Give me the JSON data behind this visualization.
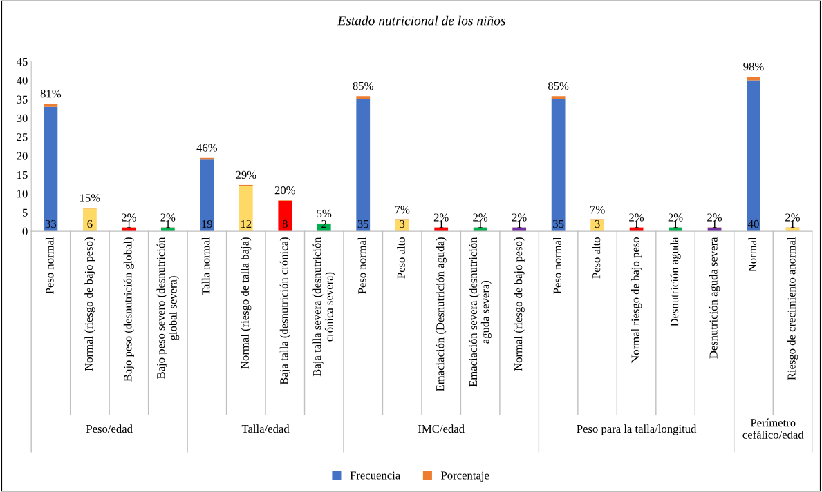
{
  "chart_data": {
    "type": "bar",
    "title": "Estado nutricional de los niños",
    "categories": [
      "Peso normal",
      "Normal (riesgo de bajo peso)",
      "Bajo peso (desnutrición global)",
      "Bajo peso severo (desnutrición\nglobal severa)",
      "Talla normal",
      "Normal (riesgo de talla baja)",
      "Baja talla (desnutrición crónica)",
      "Baja talla severa (desnutrición\ncrónica severa)",
      "Peso normal",
      "Peso alto",
      "Emaciación (Desnutrición aguda)",
      "Emaciación severa (desnutrición\naguda severa)",
      "Normal (riesgo de bajo peso)",
      "Peso normal",
      "Peso alto",
      "Normal riesgo de bajo peso",
      "Desnutrición aguda",
      "Desnutrición aguda severa",
      "Normal",
      "Riesgo de crecimiento anormal"
    ],
    "stacked": true,
    "series": [
      {
        "name": "Frecuencia",
        "color": "#4472c4",
        "colors": [
          "#4472c4",
          "#ffd966",
          "#ff0000",
          "#00b050",
          "#4472c4",
          "#ffd966",
          "#ff0000",
          "#00b050",
          "#4472c4",
          "#ffd966",
          "#ff0000",
          "#00b050",
          "#7030a0",
          "#4472c4",
          "#ffd966",
          "#ff0000",
          "#00b050",
          "#7030a0",
          "#4472c4",
          "#ffd966"
        ],
        "values": [
          33,
          6,
          1,
          1,
          19,
          12,
          8,
          2,
          35,
          3,
          1,
          1,
          1,
          35,
          3,
          1,
          1,
          1,
          40,
          1
        ],
        "value_labels": [
          "33",
          "6",
          "1",
          "1",
          "19",
          "12",
          "8",
          "2",
          "35",
          "3",
          "1",
          "1",
          "1",
          "35",
          "3",
          "1",
          "1",
          "1",
          "40",
          "1"
        ]
      },
      {
        "name": "Porcentaje",
        "color": "#ed7d31",
        "values": [
          0.81,
          0.15,
          0.02,
          0.02,
          0.46,
          0.29,
          0.2,
          0.05,
          0.85,
          0.07,
          0.02,
          0.02,
          0.02,
          0.85,
          0.07,
          0.02,
          0.02,
          0.02,
          0.98,
          0.02
        ],
        "value_labels": [
          "81%",
          "15%",
          "2%",
          "2%",
          "46%",
          "29%",
          "20%",
          "5%",
          "85%",
          "7%",
          "2%",
          "2%",
          "2%",
          "85%",
          "7%",
          "2%",
          "2%",
          "2%",
          "98%",
          "2%"
        ]
      }
    ],
    "ylim": [
      0,
      45
    ],
    "yticks": [
      0,
      5,
      10,
      15,
      20,
      25,
      30,
      35,
      40,
      45
    ],
    "grid": false,
    "legend": "bottom",
    "annotations": [
      "Peso/edad",
      "Talla/edad",
      "IMC/edad",
      "Peso para la talla/longitud",
      "Perímetro\ncefálico/edad"
    ]
  }
}
